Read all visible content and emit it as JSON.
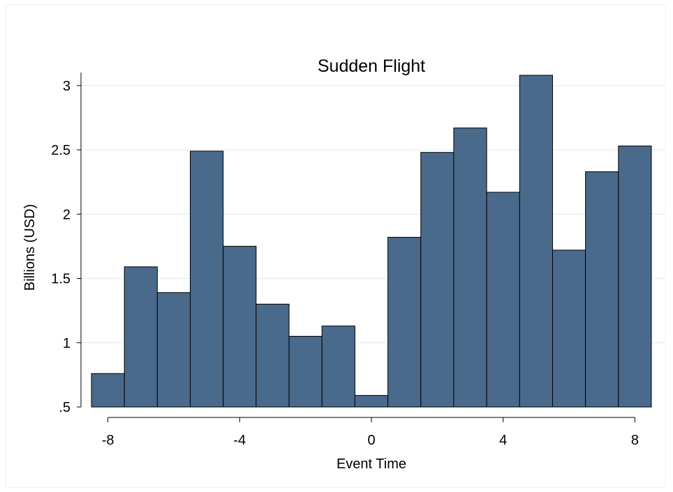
{
  "chart_data": {
    "type": "bar",
    "title": "Sudden Flight",
    "xlabel": "Event Time",
    "ylabel": "Billions (USD)",
    "x": [
      -8,
      -7,
      -6,
      -5,
      -4,
      -3,
      -2,
      -1,
      0,
      1,
      2,
      3,
      4,
      5,
      6,
      7,
      8
    ],
    "values": [
      0.76,
      1.59,
      1.39,
      2.49,
      1.75,
      1.3,
      1.05,
      1.13,
      0.59,
      1.82,
      2.48,
      2.67,
      2.17,
      3.08,
      1.72,
      2.33,
      2.53
    ],
    "xlim": [
      -8.5,
      8.5
    ],
    "ylim": [
      0.5,
      3.08
    ],
    "xticks": [
      {
        "value": -8,
        "label": "-8"
      },
      {
        "value": -4,
        "label": "-4"
      },
      {
        "value": 0,
        "label": "0"
      },
      {
        "value": 4,
        "label": "4"
      },
      {
        "value": 8,
        "label": "8"
      }
    ],
    "yticks": [
      {
        "value": 0.5,
        "label": ".5"
      },
      {
        "value": 1,
        "label": "1"
      },
      {
        "value": 1.5,
        "label": "1.5"
      },
      {
        "value": 2,
        "label": "2"
      },
      {
        "value": 2.5,
        "label": "2.5"
      },
      {
        "value": 3,
        "label": "3"
      }
    ],
    "grid": true,
    "bar_color": "#4a6a8c",
    "bar_edge_color": "#000000",
    "grid_color": "#eaf0f3"
  }
}
